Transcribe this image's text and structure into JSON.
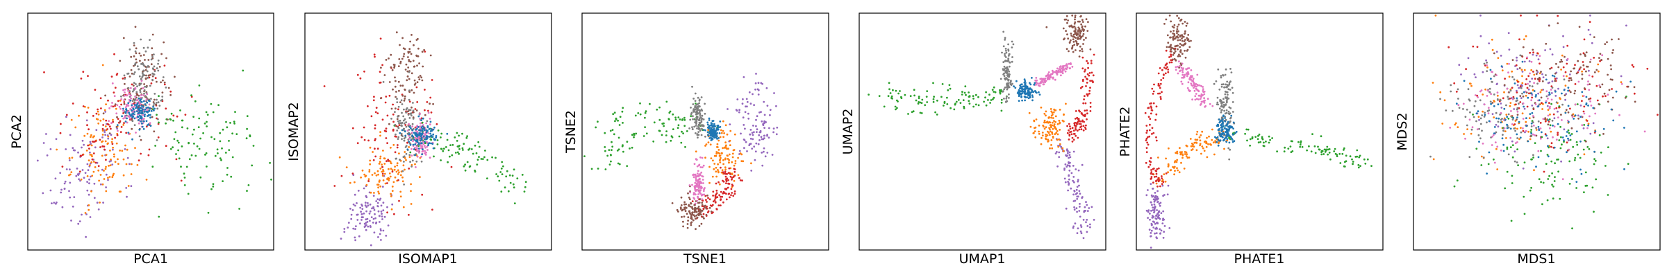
{
  "chart_data": [
    {
      "type": "scatter",
      "xlabel": "PCA1",
      "ylabel": "PCA2",
      "ticks": "none",
      "series": [
        {
          "color": "#9467bd",
          "clusters": [
            {
              "x": 0.22,
              "y": 0.33,
              "sx": 0.085,
              "sy": 0.12,
              "share": 0.85
            },
            {
              "x": 0.32,
              "y": 0.45,
              "sx": 0.06,
              "sy": 0.08,
              "share": 0.15
            }
          ]
        },
        {
          "color": "#ff7f0e",
          "clusters": [
            {
              "x": 0.32,
              "y": 0.4,
              "sx": 0.07,
              "sy": 0.1,
              "share": 1.0
            }
          ]
        },
        {
          "color": "#d62728",
          "clusters": [
            {
              "x": 0.4,
              "y": 0.6,
              "sx": 0.1,
              "sy": 0.12,
              "share": 0.7
            },
            {
              "x": 0.28,
              "y": 0.5,
              "sx": 0.07,
              "sy": 0.08,
              "share": 0.3
            }
          ]
        },
        {
          "color": "#2ca02c",
          "clusters": [
            {
              "x": 0.76,
              "y": 0.42,
              "sx": 0.1,
              "sy": 0.11,
              "share": 0.8
            },
            {
              "x": 0.58,
              "y": 0.55,
              "sx": 0.08,
              "sy": 0.08,
              "share": 0.2
            }
          ]
        },
        {
          "color": "#8c564b",
          "clusters": [
            {
              "x": 0.47,
              "y": 0.75,
              "sx": 0.05,
              "sy": 0.1,
              "share": 0.8
            },
            {
              "x": 0.42,
              "y": 0.62,
              "sx": 0.05,
              "sy": 0.06,
              "share": 0.2
            }
          ]
        },
        {
          "color": "#7f7f7f",
          "clusters": [
            {
              "x": 0.47,
              "y": 0.7,
              "sx": 0.04,
              "sy": 0.08,
              "share": 1.0
            }
          ]
        },
        {
          "color": "#e377c2",
          "clusters": [
            {
              "x": 0.43,
              "y": 0.6,
              "sx": 0.04,
              "sy": 0.05,
              "share": 1.0
            }
          ]
        },
        {
          "color": "#1f77b4",
          "clusters": [
            {
              "x": 0.45,
              "y": 0.58,
              "sx": 0.03,
              "sy": 0.03,
              "share": 1.0
            }
          ]
        }
      ]
    },
    {
      "type": "scatter",
      "xlabel": "ISOMAP1",
      "ylabel": "ISOMAP2",
      "ticks": "none",
      "series": [
        {
          "color": "#9467bd",
          "clusters": [
            {
              "x": 0.26,
              "y": 0.15,
              "sx": 0.05,
              "sy": 0.05,
              "share": 1.0
            }
          ]
        },
        {
          "color": "#ff7f0e",
          "clusters": [
            {
              "x": 0.33,
              "y": 0.32,
              "sx": 0.06,
              "sy": 0.06,
              "share": 1.0
            }
          ]
        },
        {
          "color": "#d62728",
          "clusters": [
            {
              "x": 0.35,
              "y": 0.5,
              "sx": 0.09,
              "sy": 0.15,
              "share": 1.0
            }
          ]
        },
        {
          "color": "#2ca02c",
          "curve": [
            [
              0.45,
              0.47
            ],
            [
              0.62,
              0.43
            ],
            [
              0.74,
              0.36
            ],
            [
              0.86,
              0.28
            ]
          ],
          "spread": 0.035
        },
        {
          "color": "#8c564b",
          "clusters": [
            {
              "x": 0.41,
              "y": 0.75,
              "sx": 0.04,
              "sy": 0.1,
              "share": 1.0
            }
          ]
        },
        {
          "color": "#7f7f7f",
          "clusters": [
            {
              "x": 0.42,
              "y": 0.52,
              "sx": 0.03,
              "sy": 0.09,
              "share": 1.0
            }
          ]
        },
        {
          "color": "#e377c2",
          "clusters": [
            {
              "x": 0.47,
              "y": 0.47,
              "sx": 0.02,
              "sy": 0.04,
              "share": 1.0
            }
          ]
        },
        {
          "color": "#1f77b4",
          "clusters": [
            {
              "x": 0.47,
              "y": 0.48,
              "sx": 0.03,
              "sy": 0.03,
              "share": 1.0
            }
          ]
        }
      ]
    },
    {
      "type": "scatter",
      "xlabel": "TSNE1",
      "ylabel": "TSNE2",
      "ticks": "none",
      "series": [
        {
          "color": "#9467bd",
          "curve": [
            [
              0.7,
              0.66
            ],
            [
              0.71,
              0.55
            ],
            [
              0.7,
              0.4
            ]
          ],
          "spread": 0.045
        },
        {
          "color": "#ff7f0e",
          "clusters": [
            {
              "x": 0.57,
              "y": 0.4,
              "sx": 0.035,
              "sy": 0.06,
              "share": 1.0
            }
          ]
        },
        {
          "color": "#d62728",
          "curve": [
            [
              0.61,
              0.33
            ],
            [
              0.56,
              0.22
            ],
            [
              0.48,
              0.16
            ]
          ],
          "spread": 0.02
        },
        {
          "color": "#2ca02c",
          "curve": [
            [
              0.1,
              0.35
            ],
            [
              0.14,
              0.5
            ],
            [
              0.25,
              0.55
            ],
            [
              0.4,
              0.55
            ],
            [
              0.44,
              0.48
            ]
          ],
          "spread": 0.05
        },
        {
          "color": "#8c564b",
          "clusters": [
            {
              "x": 0.45,
              "y": 0.17,
              "sx": 0.03,
              "sy": 0.03,
              "share": 1.0
            }
          ]
        },
        {
          "color": "#7f7f7f",
          "clusters": [
            {
              "x": 0.47,
              "y": 0.57,
              "sx": 0.015,
              "sy": 0.04,
              "share": 1.0
            }
          ]
        },
        {
          "color": "#e377c2",
          "clusters": [
            {
              "x": 0.47,
              "y": 0.28,
              "sx": 0.012,
              "sy": 0.04,
              "share": 1.0
            }
          ]
        },
        {
          "color": "#1f77b4",
          "clusters": [
            {
              "x": 0.53,
              "y": 0.5,
              "sx": 0.012,
              "sy": 0.02,
              "share": 1.0
            }
          ]
        }
      ]
    },
    {
      "type": "scatter",
      "xlabel": "UMAP1",
      "ylabel": "UMAP2",
      "ticks": "none",
      "series": [
        {
          "color": "#9467bd",
          "curve": [
            [
              0.82,
              0.45
            ],
            [
              0.86,
              0.3
            ],
            [
              0.92,
              0.08
            ]
          ],
          "spread": 0.02
        },
        {
          "color": "#ff7f0e",
          "clusters": [
            {
              "x": 0.77,
              "y": 0.52,
              "sx": 0.035,
              "sy": 0.04,
              "share": 1.0
            }
          ]
        },
        {
          "color": "#d62728",
          "curve": [
            [
              0.93,
              0.82
            ],
            [
              0.91,
              0.55
            ],
            [
              0.86,
              0.48
            ]
          ],
          "spread": 0.015
        },
        {
          "color": "#2ca02c",
          "curve": [
            [
              0.1,
              0.63
            ],
            [
              0.4,
              0.64
            ],
            [
              0.6,
              0.67
            ]
          ],
          "spread": 0.03
        },
        {
          "color": "#8c564b",
          "clusters": [
            {
              "x": 0.88,
              "y": 0.91,
              "sx": 0.025,
              "sy": 0.04,
              "share": 1.0
            }
          ]
        },
        {
          "color": "#7f7f7f",
          "clusters": [
            {
              "x": 0.6,
              "y": 0.75,
              "sx": 0.01,
              "sy": 0.06,
              "share": 1.0
            }
          ]
        },
        {
          "color": "#e377c2",
          "curve": [
            [
              0.72,
              0.7
            ],
            [
              0.85,
              0.78
            ]
          ],
          "spread": 0.01
        },
        {
          "color": "#1f77b4",
          "clusters": [
            {
              "x": 0.68,
              "y": 0.67,
              "sx": 0.02,
              "sy": 0.02,
              "share": 1.0
            }
          ]
        }
      ]
    },
    {
      "type": "scatter",
      "xlabel": "PHATE1",
      "ylabel": "PHATE2",
      "ticks": "none",
      "series": [
        {
          "color": "#9467bd",
          "clusters": [
            {
              "x": 0.08,
              "y": 0.15,
              "sx": 0.02,
              "sy": 0.07,
              "share": 1.0
            }
          ]
        },
        {
          "color": "#ff7f0e",
          "curve": [
            [
              0.08,
              0.3
            ],
            [
              0.2,
              0.42
            ],
            [
              0.34,
              0.48
            ]
          ],
          "spread": 0.025
        },
        {
          "color": "#d62728",
          "curve": [
            [
              0.15,
              0.85
            ],
            [
              0.06,
              0.6
            ],
            [
              0.05,
              0.35
            ],
            [
              0.1,
              0.28
            ]
          ],
          "spread": 0.012
        },
        {
          "color": "#2ca02c",
          "curve": [
            [
              0.35,
              0.5
            ],
            [
              0.62,
              0.45
            ],
            [
              0.8,
              0.4
            ],
            [
              0.95,
              0.37
            ]
          ],
          "spread": 0.018
        },
        {
          "color": "#8c564b",
          "clusters": [
            {
              "x": 0.17,
              "y": 0.88,
              "sx": 0.025,
              "sy": 0.05,
              "share": 1.0
            }
          ]
        },
        {
          "color": "#7f7f7f",
          "clusters": [
            {
              "x": 0.36,
              "y": 0.63,
              "sx": 0.015,
              "sy": 0.08,
              "share": 1.0
            }
          ]
        },
        {
          "color": "#e377c2",
          "curve": [
            [
              0.18,
              0.78
            ],
            [
              0.28,
              0.62
            ]
          ],
          "spread": 0.015
        },
        {
          "color": "#1f77b4",
          "clusters": [
            {
              "x": 0.36,
              "y": 0.5,
              "sx": 0.02,
              "sy": 0.025,
              "share": 1.0
            }
          ]
        }
      ]
    },
    {
      "type": "scatter",
      "xlabel": "MDS1",
      "ylabel": "MDS2",
      "ticks": "none",
      "series": [
        {
          "color": "#9467bd",
          "clusters": [
            {
              "x": 0.5,
              "y": 0.7,
              "sx": 0.16,
              "sy": 0.13,
              "share": 1.0
            }
          ]
        },
        {
          "color": "#ff7f0e",
          "clusters": [
            {
              "x": 0.42,
              "y": 0.62,
              "sx": 0.14,
              "sy": 0.12,
              "share": 1.0
            }
          ]
        },
        {
          "color": "#d62728",
          "clusters": [
            {
              "x": 0.55,
              "y": 0.68,
              "sx": 0.16,
              "sy": 0.12,
              "share": 1.0
            }
          ]
        },
        {
          "color": "#2ca02c",
          "clusters": [
            {
              "x": 0.58,
              "y": 0.38,
              "sx": 0.15,
              "sy": 0.12,
              "share": 1.0
            }
          ]
        },
        {
          "color": "#8c564b",
          "clusters": [
            {
              "x": 0.62,
              "y": 0.7,
              "sx": 0.14,
              "sy": 0.1,
              "share": 1.0
            }
          ]
        },
        {
          "color": "#7f7f7f",
          "clusters": [
            {
              "x": 0.35,
              "y": 0.6,
              "sx": 0.12,
              "sy": 0.1,
              "share": 1.0
            }
          ]
        },
        {
          "color": "#e377c2",
          "clusters": [
            {
              "x": 0.5,
              "y": 0.6,
              "sx": 0.15,
              "sy": 0.12,
              "share": 1.0
            }
          ]
        },
        {
          "color": "#1f77b4",
          "clusters": [
            {
              "x": 0.5,
              "y": 0.55,
              "sx": 0.15,
              "sy": 0.12,
              "share": 1.0
            }
          ]
        }
      ]
    }
  ]
}
